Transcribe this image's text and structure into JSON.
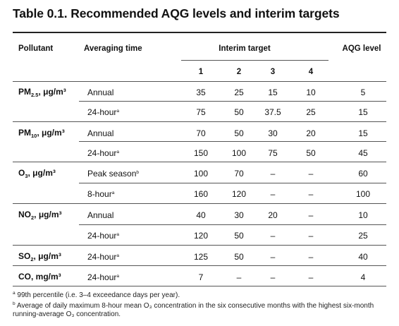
{
  "title": "Table 0.1. Recommended AQG levels and interim targets",
  "headers": {
    "pollutant": "Pollutant",
    "averaging_time": "Averaging time",
    "interim_target": "Interim target",
    "aqg_level": "AQG level",
    "it_numbers": [
      "1",
      "2",
      "3",
      "4"
    ]
  },
  "pollutants": [
    {
      "name": "PM",
      "sub": "2.5",
      "unit": ", μg/m³"
    },
    {
      "name": "PM",
      "sub": "10",
      "unit": ", μg/m³"
    },
    {
      "name": "O",
      "sub": "3",
      "unit": ", μg/m³"
    },
    {
      "name": "NO",
      "sub": "2",
      "unit": ", μg/m³"
    },
    {
      "name": "SO",
      "sub": "2",
      "unit": ", μg/m³"
    },
    {
      "name": "CO",
      "sub": "",
      "unit": ", mg/m³"
    }
  ],
  "rows": [
    {
      "avg": "Annual",
      "sup": "",
      "it": [
        "35",
        "25",
        "15",
        "10"
      ],
      "aqg": "5"
    },
    {
      "avg": "24-hour",
      "sup": "a",
      "it": [
        "75",
        "50",
        "37.5",
        "25"
      ],
      "aqg": "15"
    },
    {
      "avg": "Annual",
      "sup": "",
      "it": [
        "70",
        "50",
        "30",
        "20"
      ],
      "aqg": "15"
    },
    {
      "avg": "24-hour",
      "sup": "a",
      "it": [
        "150",
        "100",
        "75",
        "50"
      ],
      "aqg": "45"
    },
    {
      "avg": "Peak season",
      "sup": "b",
      "it": [
        "100",
        "70",
        "–",
        "–"
      ],
      "aqg": "60"
    },
    {
      "avg": "8-hour",
      "sup": "a",
      "it": [
        "160",
        "120",
        "–",
        "–"
      ],
      "aqg": "100"
    },
    {
      "avg": "Annual",
      "sup": "",
      "it": [
        "40",
        "30",
        "20",
        "–"
      ],
      "aqg": "10"
    },
    {
      "avg": "24-hour",
      "sup": "a",
      "it": [
        "120",
        "50",
        "–",
        "–"
      ],
      "aqg": "25"
    },
    {
      "avg": "24-hour",
      "sup": "a",
      "it": [
        "125",
        "50",
        "–",
        "–"
      ],
      "aqg": "40"
    },
    {
      "avg": "24-hour",
      "sup": "a",
      "it": [
        "7",
        "–",
        "–",
        "–"
      ],
      "aqg": "4"
    }
  ],
  "footnotes": [
    {
      "mark": "a",
      "text": " 99th percentile (i.e. 3–4 exceedance days per year)."
    },
    {
      "mark": "b",
      "text": " Average of daily maximum 8-hour mean O₃ concentration in the six consecutive months with the highest six-month running-average O₃ concentration."
    }
  ]
}
